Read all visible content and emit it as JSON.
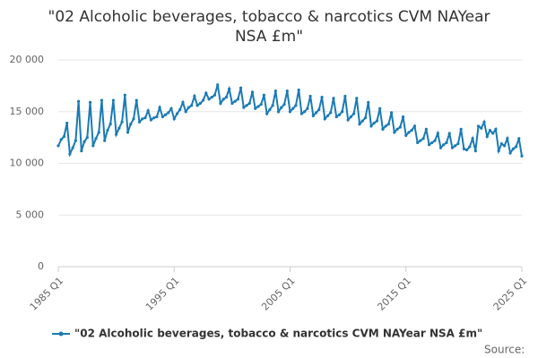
{
  "chart_data": {
    "type": "line",
    "title": "\"02 Alcoholic beverages, tobacco & narcotics CVM NAYear NSA £m\"",
    "source": "Source:",
    "categories": [
      "1985 Q1",
      null,
      null,
      null,
      null,
      null,
      null,
      null,
      null,
      null,
      null,
      null,
      null,
      null,
      null,
      null,
      null,
      null,
      null,
      null,
      null,
      null,
      null,
      null,
      null,
      null,
      null,
      null,
      null,
      null,
      null,
      null,
      null,
      null,
      null,
      null,
      null,
      null,
      null,
      null,
      "1995 Q1",
      null,
      null,
      null,
      null,
      null,
      null,
      null,
      null,
      null,
      null,
      null,
      null,
      null,
      null,
      null,
      null,
      null,
      null,
      null,
      null,
      null,
      null,
      null,
      null,
      null,
      null,
      null,
      null,
      null,
      null,
      null,
      null,
      null,
      null,
      null,
      null,
      null,
      null,
      null,
      "2005 Q1",
      null,
      null,
      null,
      null,
      null,
      null,
      null,
      null,
      null,
      null,
      null,
      null,
      null,
      null,
      null,
      null,
      null,
      null,
      null,
      null,
      null,
      null,
      null,
      null,
      null,
      null,
      null,
      null,
      null,
      null,
      null,
      null,
      null,
      null,
      null,
      null,
      null,
      null,
      null,
      "2015 Q1",
      null,
      null,
      null,
      null,
      null,
      null,
      null,
      null,
      null,
      null,
      null,
      null,
      null,
      null,
      null,
      null,
      null,
      null,
      null,
      null,
      null,
      null,
      null,
      null,
      null,
      null,
      null,
      null,
      null,
      null,
      null,
      null,
      null,
      null,
      null,
      null,
      null,
      null,
      null,
      "2025 Q1"
    ],
    "series": [
      {
        "name": "\"02 Alcoholic beverages, tobacco & narcotics CVM NAYear NSA £m\"",
        "color": "#1a7bb5",
        "values": [
          11700,
          12300,
          12600,
          13900,
          10900,
          11500,
          12200,
          16000,
          11200,
          12100,
          12500,
          15900,
          11700,
          12400,
          13000,
          16100,
          12200,
          13200,
          13800,
          16100,
          12800,
          13400,
          14000,
          16600,
          13000,
          13800,
          14300,
          16100,
          14000,
          14300,
          14400,
          15100,
          14200,
          14400,
          14500,
          15400,
          14500,
          14700,
          14900,
          15300,
          14300,
          14800,
          15200,
          15900,
          15000,
          15400,
          15600,
          16500,
          15600,
          15800,
          16100,
          16800,
          16200,
          16400,
          16600,
          17600,
          15800,
          16200,
          16400,
          17200,
          15800,
          16000,
          16200,
          17300,
          15400,
          15600,
          15800,
          16900,
          15300,
          15500,
          15700,
          16600,
          14800,
          15200,
          15600,
          17000,
          15000,
          15400,
          15700,
          17000,
          15000,
          15300,
          15600,
          17100,
          14800,
          15000,
          15300,
          16500,
          14600,
          14900,
          15200,
          16400,
          14300,
          14600,
          14900,
          16300,
          14500,
          14700,
          15000,
          16500,
          14200,
          14500,
          14800,
          16300,
          13800,
          14100,
          14400,
          15900,
          13600,
          13900,
          14100,
          15300,
          13300,
          13600,
          13800,
          14900,
          13000,
          13300,
          13500,
          14500,
          12700,
          13000,
          13200,
          13600,
          12000,
          12200,
          12400,
          13300,
          11800,
          12000,
          12200,
          12900,
          11500,
          11800,
          12000,
          12900,
          11500,
          11700,
          11900,
          13300,
          11400,
          11300,
          11600,
          12400,
          11200,
          13600,
          13400,
          14000,
          12600,
          13200,
          12900,
          13300,
          11200,
          11900,
          11700,
          12400,
          11000,
          11400,
          11600,
          12400,
          10700
        ]
      }
    ],
    "ylim": [
      0,
      20000
    ],
    "yticks": [
      0,
      {
        "value": 5000,
        "label": "5 000"
      },
      {
        "value": 10000,
        "label": "10 000"
      },
      {
        "value": 15000,
        "label": "15 000"
      },
      {
        "value": 20000,
        "label": "20 000"
      }
    ],
    "grid": true
  }
}
